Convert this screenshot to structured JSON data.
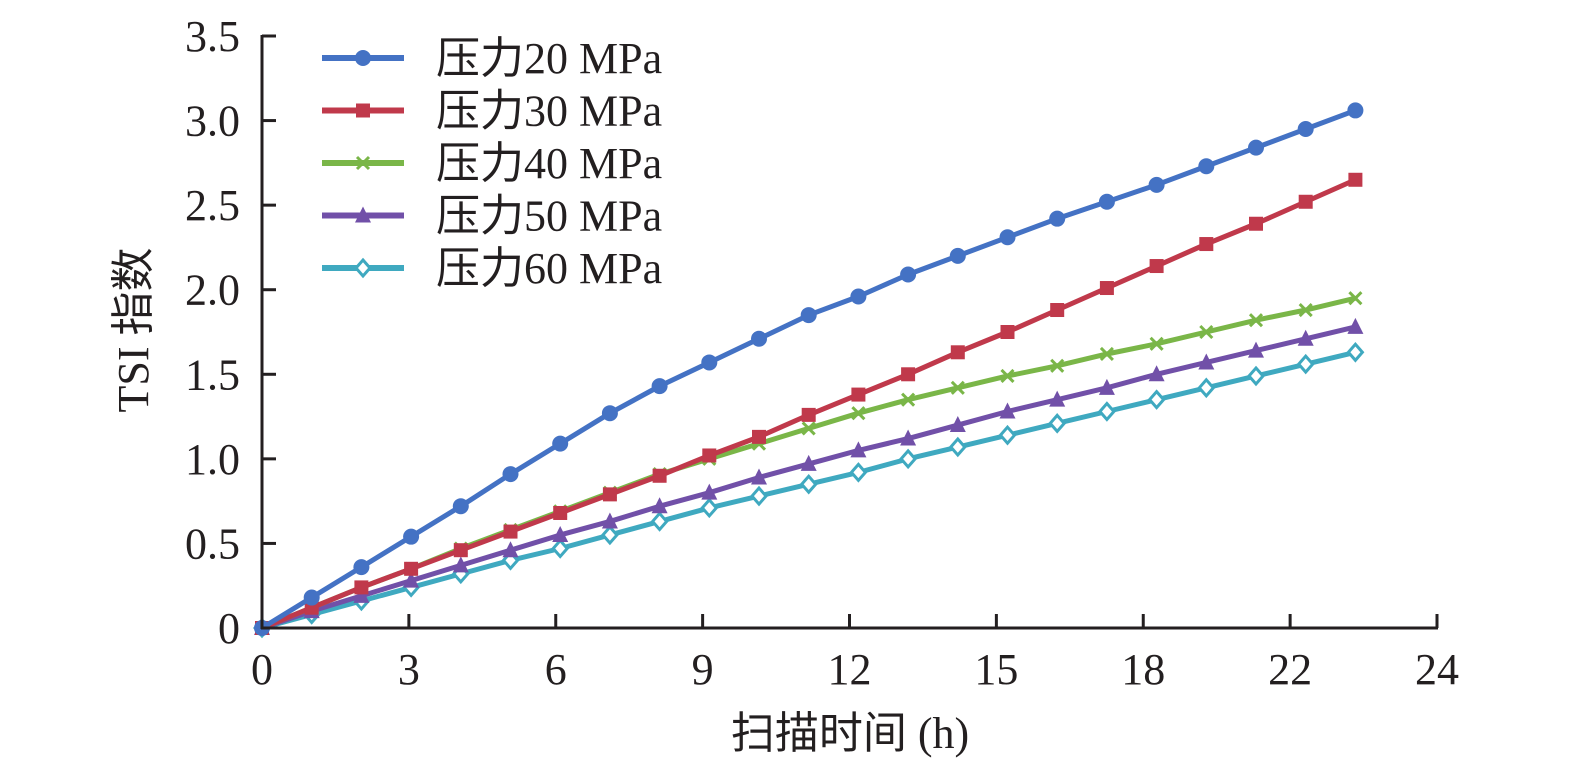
{
  "chart_data": {
    "type": "line",
    "title": "",
    "xlabel": "扫描时间 (h)",
    "ylabel": "TSI 指数",
    "xlim": [
      0,
      24
    ],
    "ylim": [
      0,
      3.5
    ],
    "x_ticks": [
      "0",
      "3",
      "6",
      "9",
      "12",
      "15",
      "18",
      "22",
      "24"
    ],
    "y_ticks": [
      "0",
      "0.5",
      "1.0",
      "1.5",
      "2.0",
      "2.5",
      "3.0",
      "3.5"
    ],
    "y_tick_values": [
      0,
      0.5,
      1.0,
      1.5,
      2.0,
      2.5,
      3.0,
      3.5
    ],
    "grid": false,
    "legend_position": "top-left",
    "x": [
      0,
      1,
      2,
      3,
      4,
      5,
      6,
      7,
      8,
      9,
      10,
      11,
      12,
      13,
      14,
      15,
      16,
      17,
      18,
      19,
      20,
      21,
      22
    ],
    "series": [
      {
        "name": "压力20 MPa",
        "color": "#4472c4",
        "marker": "circle",
        "values": [
          0,
          0.18,
          0.36,
          0.54,
          0.72,
          0.91,
          1.09,
          1.27,
          1.43,
          1.57,
          1.71,
          1.85,
          1.96,
          2.09,
          2.2,
          2.31,
          2.42,
          2.52,
          2.62,
          2.73,
          2.84,
          2.95,
          3.06
        ]
      },
      {
        "name": "压力30 MPa",
        "color": "#c0394b",
        "marker": "square",
        "values": [
          0,
          0.12,
          0.24,
          0.35,
          0.46,
          0.57,
          0.68,
          0.79,
          0.9,
          1.02,
          1.13,
          1.26,
          1.38,
          1.5,
          1.63,
          1.75,
          1.88,
          2.01,
          2.14,
          2.27,
          2.39,
          2.52,
          2.65
        ]
      },
      {
        "name": "压力40 MPa",
        "color": "#7ab648",
        "marker": "x",
        "values": [
          0,
          0.12,
          0.24,
          0.35,
          0.47,
          0.58,
          0.69,
          0.8,
          0.91,
          1.0,
          1.09,
          1.18,
          1.27,
          1.35,
          1.42,
          1.49,
          1.55,
          1.62,
          1.68,
          1.75,
          1.82,
          1.88,
          1.95
        ]
      },
      {
        "name": "压力50 MPa",
        "color": "#7150a8",
        "marker": "triangle",
        "values": [
          0,
          0.1,
          0.19,
          0.28,
          0.37,
          0.46,
          0.55,
          0.63,
          0.72,
          0.8,
          0.89,
          0.97,
          1.05,
          1.12,
          1.2,
          1.28,
          1.35,
          1.42,
          1.5,
          1.57,
          1.64,
          1.71,
          1.78
        ]
      },
      {
        "name": "压力60 MPa",
        "color": "#3fa9c0",
        "marker": "diamond",
        "values": [
          0,
          0.08,
          0.16,
          0.24,
          0.32,
          0.4,
          0.47,
          0.55,
          0.63,
          0.71,
          0.78,
          0.85,
          0.92,
          1.0,
          1.07,
          1.14,
          1.21,
          1.28,
          1.35,
          1.42,
          1.49,
          1.56,
          1.63
        ]
      }
    ]
  }
}
